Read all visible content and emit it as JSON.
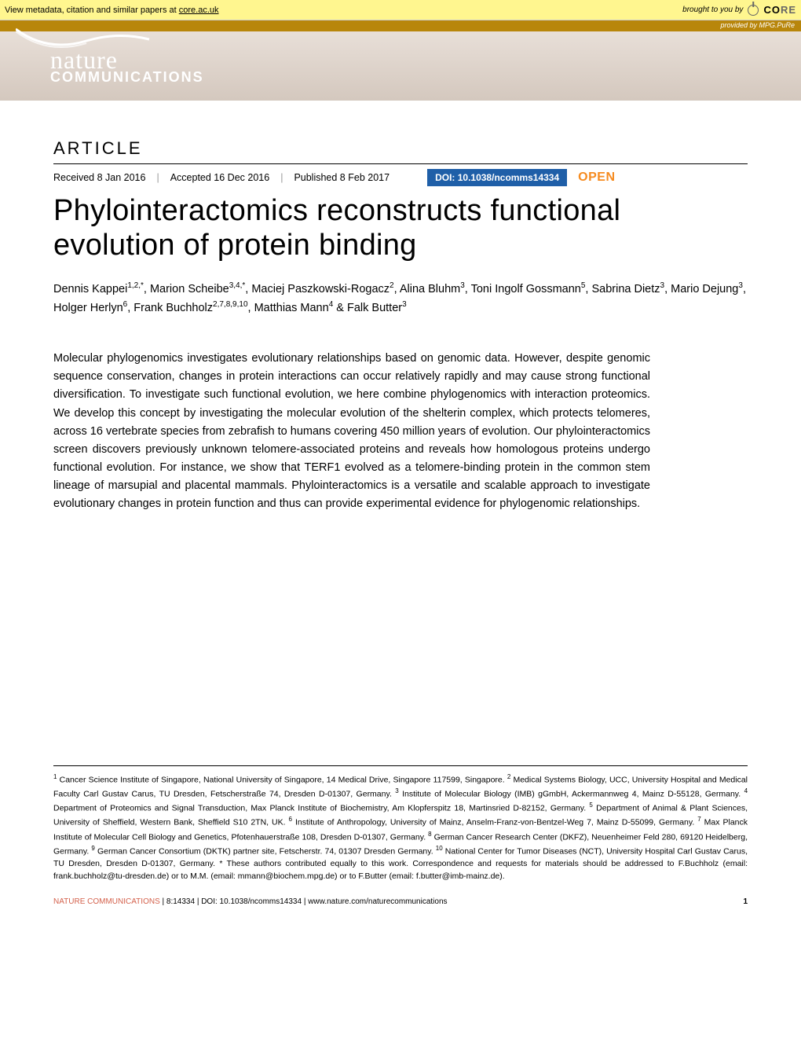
{
  "core_banner": {
    "left_prefix": "View metadata, citation and similar papers at ",
    "link_text": "core.ac.uk",
    "brought": "brought to you by",
    "brand_co": "CO",
    "brand_re": "RE",
    "provided": "provided by MPG.PuRe"
  },
  "journal": {
    "nature": "nature",
    "comms": "COMMUNICATIONS",
    "header_gradient_top": "#e8dfd8",
    "header_gradient_bottom": "#d4c8be",
    "logo_color": "#ffffff",
    "swoosh_color": "#ffffff"
  },
  "article_label": "ARTICLE",
  "dates": {
    "received": "Received 8 Jan 2016",
    "accepted": "Accepted 16 Dec 2016",
    "published": "Published 8 Feb 2017"
  },
  "doi": "DOI: 10.1038/ncomms14334",
  "open": "OPEN",
  "colors": {
    "doi_bg": "#1f5fa8",
    "open_text": "#f68b1f",
    "core_bg": "#fff68f",
    "provided_bg": "#b8860b",
    "footer_brand": "#d4614c"
  },
  "title": "Phylointeractomics reconstructs functional evolution of protein binding",
  "authors_html": "Dennis Kappei<sup>1,2,*</sup>, Marion Scheibe<sup>3,4,*</sup>, Maciej Paszkowski-Rogacz<sup>2</sup>, Alina Bluhm<sup>3</sup>, Toni Ingolf Gossmann<sup>5</sup>, Sabrina Dietz<sup>3</sup>, Mario Dejung<sup>3</sup>, Holger Herlyn<sup>6</sup>, Frank Buchholz<sup>2,7,8,9,10</sup>, Matthias Mann<sup>4</sup> & Falk Butter<sup>3</sup>",
  "abstract": "Molecular phylogenomics investigates evolutionary relationships based on genomic data. However, despite genomic sequence conservation, changes in protein interactions can occur relatively rapidly and may cause strong functional diversification. To investigate such functional evolution, we here combine phylogenomics with interaction proteomics. We develop this concept by investigating the molecular evolution of the shelterin complex, which protects telomeres, across 16 vertebrate species from zebrafish to humans covering 450 million years of evolution. Our phylointeractomics screen discovers previously unknown telomere-associated proteins and reveals how homologous proteins undergo functional evolution. For instance, we show that TERF1 evolved as a telomere-binding protein in the common stem lineage of marsupial and placental mammals. Phylointeractomics is a versatile and scalable approach to investigate evolutionary changes in protein function and thus can provide experimental evidence for phylogenomic relationships.",
  "affiliations_html": "<sup>1</sup> Cancer Science Institute of Singapore, National University of Singapore, 14 Medical Drive, Singapore 117599, Singapore. <sup>2</sup> Medical Systems Biology, UCC, University Hospital and Medical Faculty Carl Gustav Carus, TU Dresden, Fetscherstraße 74, Dresden D-01307, Germany. <sup>3</sup> Institute of Molecular Biology (IMB) gGmbH, Ackermannweg 4, Mainz D-55128, Germany. <sup>4</sup> Department of Proteomics and Signal Transduction, Max Planck Institute of Biochemistry, Am Klopferspitz 18, Martinsried D-82152, Germany. <sup>5</sup> Department of Animal & Plant Sciences, University of Sheffield, Western Bank, Sheffield S10 2TN, UK. <sup>6</sup> Institute of Anthropology, University of Mainz, Anselm-Franz-von-Bentzel-Weg 7, Mainz D-55099, Germany. <sup>7</sup> Max Planck Institute of Molecular Cell Biology and Genetics, Pfotenhauerstraße 108, Dresden D-01307, Germany. <sup>8</sup> German Cancer Research Center (DKFZ), Neuenheimer Feld 280, 69120 Heidelberg, Germany. <sup>9</sup> German Cancer Consortium (DKTK) partner site, Fetscherstr. 74, 01307 Dresden Germany. <sup>10</sup> National Center for Tumor Diseases (NCT), University Hospital Carl Gustav Carus, TU Dresden, Dresden D-01307, Germany. * These authors contributed equally to this work. Correspondence and requests for materials should be addressed to F.Buchholz (email: frank.buchholz@tu-dresden.de) or to M.M. (email: mmann@biochem.mpg.de) or to F.Butter (email: f.butter@imb-mainz.de).",
  "footer": {
    "brand": "NATURE COMMUNICATIONS",
    "citation": " | 8:14334 | DOI: 10.1038/ncomms14334 | www.nature.com/naturecommunications",
    "page": "1"
  }
}
